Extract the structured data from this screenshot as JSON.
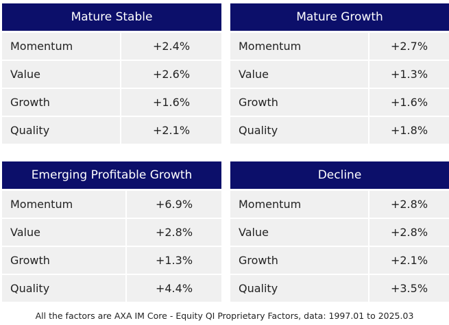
{
  "panels": [
    {
      "title": "Mature Stable",
      "rows": [
        [
          "Momentum",
          "+2.4%"
        ],
        [
          "Value",
          "+2.6%"
        ],
        [
          "Growth",
          "+1.6%"
        ],
        [
          "Quality",
          "+2.1%"
        ]
      ]
    },
    {
      "title": "Mature Growth",
      "rows": [
        [
          "Momentum",
          "+2.7%"
        ],
        [
          "Value",
          "+1.3%"
        ],
        [
          "Growth",
          "+1.6%"
        ],
        [
          "Quality",
          "+1.8%"
        ]
      ]
    },
    {
      "title": "Emerging Profitable Growth",
      "rows": [
        [
          "Momentum",
          "+6.9%"
        ],
        [
          "Value",
          "+2.8%"
        ],
        [
          "Growth",
          "+1.3%"
        ],
        [
          "Quality",
          "+4.4%"
        ]
      ]
    },
    {
      "title": "Decline",
      "rows": [
        [
          "Momentum",
          "+2.8%"
        ],
        [
          "Value",
          "+2.8%"
        ],
        [
          "Growth",
          "+2.1%"
        ],
        [
          "Quality",
          "+3.5%"
        ]
      ]
    }
  ],
  "footnote": "All the factors are AXA IM Core - Equity QI Proprietary Factors, data: 1997.01 to 2025.03"
}
